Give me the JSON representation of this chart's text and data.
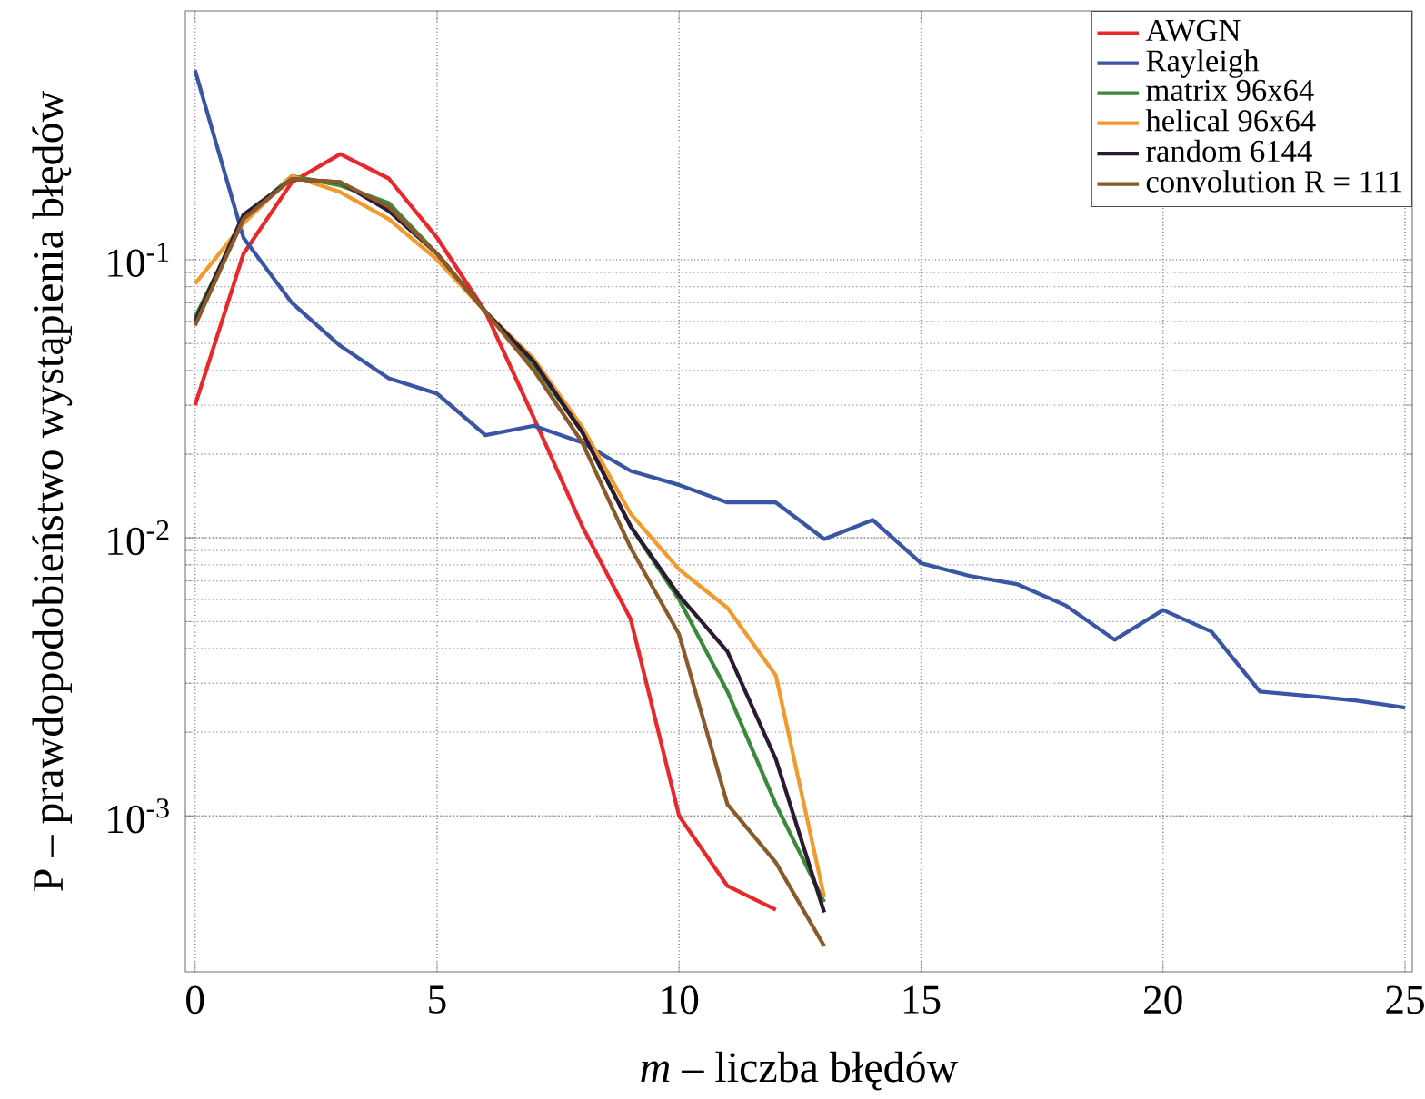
{
  "chart_data": {
    "type": "line",
    "xlabel": "*m* – liczba błędów",
    "ylabel": "P – prawdopodobieństwo wystąpienia błędów",
    "log": "y",
    "grid": true,
    "legend": "top right",
    "line_style": "solid",
    "marker": "none",
    "xlim": [
      -0.2,
      25.15
    ],
    "ylim": [
      0.000275,
      0.785
    ],
    "xticks": [
      0,
      5,
      10,
      15,
      20,
      25
    ],
    "yticks": [
      {
        "value": 0.001,
        "label": "10$^{-3}$"
      },
      {
        "value": 0.01,
        "label": "10$^{-2}$"
      },
      {
        "value": 0.1,
        "label": "10$^{-1}$"
      }
    ],
    "series": [
      {
        "name": "AWGN",
        "color": "#e8282b",
        "x": [
          0,
          1,
          2,
          3,
          4,
          5,
          6,
          7,
          8,
          9,
          10,
          11,
          12
        ],
        "values": [
          0.03,
          0.105,
          0.19,
          0.24,
          0.196,
          0.12,
          0.065,
          0.027,
          0.011,
          0.0051,
          0.001,
          0.00056,
          0.00046
        ]
      },
      {
        "name": "Rayleigh",
        "color": "#3a55a4",
        "x": [
          0,
          1,
          2,
          3,
          4,
          5,
          6,
          7,
          8,
          9,
          10,
          11,
          12,
          13,
          14,
          15,
          16,
          17,
          18,
          19,
          20,
          21,
          22,
          23,
          24,
          25
        ],
        "values": [
          0.48,
          0.12,
          0.07,
          0.049,
          0.0375,
          0.033,
          0.0234,
          0.0253,
          0.022,
          0.0174,
          0.0155,
          0.0134,
          0.0134,
          0.0099,
          0.0116,
          0.0081,
          0.0073,
          0.0068,
          0.0057,
          0.0043,
          0.0055,
          0.0046,
          0.0028,
          0.0027,
          0.0026,
          0.00245
        ]
      },
      {
        "name": "matrix 96x64",
        "color": "#3a8a3a",
        "x": [
          0,
          1,
          2,
          3,
          4,
          5,
          6,
          7,
          8,
          9,
          10,
          11,
          12,
          13
        ],
        "values": [
          0.062,
          0.14,
          0.2,
          0.185,
          0.16,
          0.105,
          0.065,
          0.042,
          0.024,
          0.011,
          0.006,
          0.0028,
          0.0011,
          0.00049
        ]
      },
      {
        "name": "helical 96x64",
        "color": "#f29a2e",
        "x": [
          0,
          1,
          2,
          3,
          4,
          5,
          6,
          7,
          8,
          9,
          10,
          11,
          12,
          13
        ],
        "values": [
          0.082,
          0.135,
          0.2,
          0.175,
          0.14,
          0.1,
          0.065,
          0.044,
          0.025,
          0.0122,
          0.0077,
          0.0056,
          0.0032,
          0.00051
        ]
      },
      {
        "name": "random 6144",
        "color": "#2a1a33",
        "x": [
          0,
          1,
          2,
          3,
          4,
          5,
          6,
          7,
          8,
          9,
          10,
          11,
          12,
          13
        ],
        "values": [
          0.06,
          0.145,
          0.195,
          0.19,
          0.15,
          0.105,
          0.065,
          0.043,
          0.024,
          0.011,
          0.0062,
          0.0039,
          0.0016,
          0.00045
        ]
      },
      {
        "name": "convolution R = 111",
        "color": "#8b5a2b",
        "x": [
          0,
          1,
          2,
          3,
          4,
          5,
          6,
          7,
          8,
          9,
          10,
          11,
          12,
          13
        ],
        "values": [
          0.058,
          0.14,
          0.195,
          0.19,
          0.155,
          0.105,
          0.065,
          0.04,
          0.022,
          0.0092,
          0.0045,
          0.0011,
          0.00068,
          0.00034
        ]
      }
    ]
  }
}
